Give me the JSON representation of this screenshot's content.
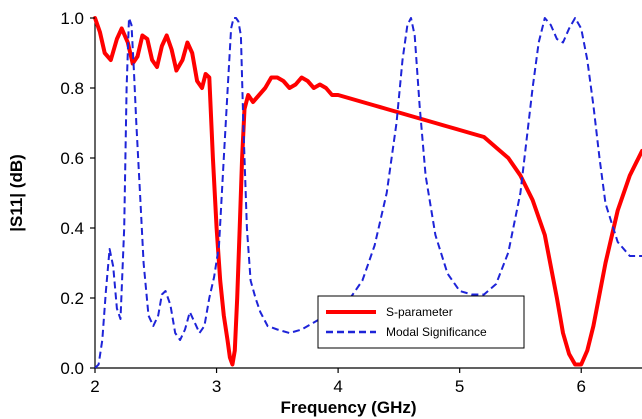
{
  "chart_data": {
    "type": "line",
    "title": "",
    "xlabel": "Frequency (GHz)",
    "ylabel": "|S11| (dB)",
    "xlim": [
      2,
      6.5
    ],
    "ylim": [
      0,
      1.0
    ],
    "xticks": [
      2,
      3,
      4,
      5,
      6
    ],
    "yticks": [
      0.0,
      0.2,
      0.4,
      0.6,
      0.8,
      1.0
    ],
    "xtick_labels": [
      "2",
      "3",
      "4",
      "5",
      "6"
    ],
    "ytick_labels": [
      "0.0",
      "0.2",
      "0.4",
      "0.6",
      "0.8",
      "1.0"
    ],
    "grid": false,
    "legend_position": "bottom-right",
    "series": [
      {
        "name": "S-parameter",
        "color": "#ff0000",
        "style": "solid",
        "x": [
          2.0,
          2.04,
          2.08,
          2.13,
          2.18,
          2.22,
          2.27,
          2.31,
          2.35,
          2.39,
          2.43,
          2.47,
          2.51,
          2.55,
          2.59,
          2.63,
          2.67,
          2.72,
          2.76,
          2.8,
          2.84,
          2.88,
          2.91,
          2.94,
          2.97,
          3.0,
          3.03,
          3.06,
          3.09,
          3.11,
          3.13,
          3.15,
          3.17,
          3.19,
          3.21,
          3.23,
          3.26,
          3.3,
          3.35,
          3.4,
          3.45,
          3.5,
          3.55,
          3.6,
          3.65,
          3.7,
          3.75,
          3.8,
          3.85,
          3.9,
          3.95,
          4.0,
          4.1,
          4.2,
          4.3,
          4.4,
          4.5,
          4.6,
          4.7,
          4.8,
          4.9,
          5.0,
          5.1,
          5.2,
          5.3,
          5.4,
          5.5,
          5.6,
          5.7,
          5.8,
          5.85,
          5.9,
          5.95,
          6.0,
          6.05,
          6.1,
          6.2,
          6.3,
          6.4,
          6.5
        ],
        "y": [
          1.0,
          0.96,
          0.9,
          0.88,
          0.94,
          0.97,
          0.93,
          0.87,
          0.89,
          0.95,
          0.94,
          0.88,
          0.86,
          0.92,
          0.95,
          0.91,
          0.85,
          0.88,
          0.93,
          0.9,
          0.82,
          0.8,
          0.84,
          0.83,
          0.6,
          0.4,
          0.25,
          0.15,
          0.08,
          0.03,
          0.01,
          0.05,
          0.2,
          0.4,
          0.6,
          0.74,
          0.78,
          0.76,
          0.78,
          0.8,
          0.83,
          0.83,
          0.82,
          0.8,
          0.81,
          0.83,
          0.82,
          0.8,
          0.81,
          0.8,
          0.78,
          0.78,
          0.77,
          0.76,
          0.75,
          0.74,
          0.73,
          0.72,
          0.71,
          0.7,
          0.69,
          0.68,
          0.67,
          0.66,
          0.63,
          0.6,
          0.55,
          0.48,
          0.38,
          0.2,
          0.1,
          0.04,
          0.01,
          0.01,
          0.05,
          0.12,
          0.3,
          0.45,
          0.55,
          0.62
        ]
      },
      {
        "name": "Modal Significance",
        "color": "#1e24d8",
        "style": "dashed",
        "x": [
          2.0,
          2.03,
          2.06,
          2.09,
          2.12,
          2.15,
          2.18,
          2.21,
          2.24,
          2.26,
          2.28,
          2.3,
          2.32,
          2.34,
          2.37,
          2.4,
          2.44,
          2.48,
          2.52,
          2.55,
          2.58,
          2.62,
          2.66,
          2.7,
          2.74,
          2.78,
          2.82,
          2.86,
          2.9,
          2.94,
          2.98,
          3.02,
          3.06,
          3.1,
          3.12,
          3.14,
          3.16,
          3.18,
          3.2,
          3.22,
          3.25,
          3.28,
          3.32,
          3.36,
          3.42,
          3.5,
          3.6,
          3.7,
          3.8,
          3.9,
          4.0,
          4.1,
          4.2,
          4.3,
          4.4,
          4.48,
          4.53,
          4.57,
          4.6,
          4.63,
          4.67,
          4.72,
          4.8,
          4.9,
          5.0,
          5.1,
          5.2,
          5.3,
          5.4,
          5.5,
          5.55,
          5.6,
          5.65,
          5.7,
          5.75,
          5.8,
          5.85,
          5.9,
          5.95,
          6.0,
          6.05,
          6.1,
          6.15,
          6.2,
          6.3,
          6.4,
          6.5
        ],
        "y": [
          0.0,
          0.01,
          0.08,
          0.22,
          0.34,
          0.29,
          0.17,
          0.14,
          0.4,
          0.8,
          1.0,
          0.98,
          0.85,
          0.7,
          0.5,
          0.3,
          0.15,
          0.12,
          0.15,
          0.21,
          0.22,
          0.18,
          0.1,
          0.08,
          0.11,
          0.16,
          0.13,
          0.1,
          0.12,
          0.2,
          0.26,
          0.35,
          0.6,
          0.85,
          0.97,
          1.0,
          1.0,
          0.99,
          0.95,
          0.7,
          0.4,
          0.25,
          0.2,
          0.16,
          0.12,
          0.11,
          0.1,
          0.11,
          0.13,
          0.15,
          0.17,
          0.2,
          0.25,
          0.35,
          0.5,
          0.7,
          0.88,
          0.98,
          1.0,
          0.95,
          0.75,
          0.55,
          0.38,
          0.27,
          0.22,
          0.21,
          0.21,
          0.24,
          0.33,
          0.5,
          0.65,
          0.8,
          0.93,
          1.0,
          0.98,
          0.94,
          0.93,
          0.97,
          1.0,
          0.97,
          0.88,
          0.75,
          0.6,
          0.47,
          0.36,
          0.32,
          0.32
        ]
      }
    ]
  }
}
